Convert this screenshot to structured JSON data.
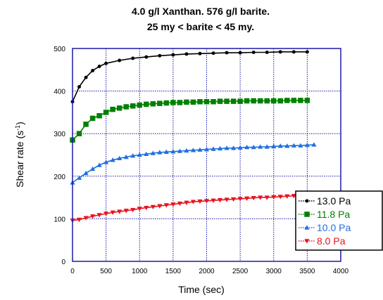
{
  "chart_data": {
    "type": "scatter",
    "title_lines": [
      "4.0 g/l Xanthan. 576 g/l barite.",
      "25 my < barite < 45 my."
    ],
    "xlabel": "Time (sec)",
    "ylabel_prefix": "Shear rate (s",
    "ylabel_sup": "-1",
    "ylabel_suffix": ")",
    "xlim": [
      0,
      4000
    ],
    "ylim": [
      0,
      500
    ],
    "x_ticks": [
      0,
      500,
      1000,
      1500,
      2000,
      2500,
      3000,
      3500,
      4000
    ],
    "y_ticks": [
      0,
      100,
      200,
      300,
      400,
      500
    ],
    "grid": true,
    "legend_position": "bottom-right",
    "series": [
      {
        "name": "13.0 Pa",
        "color": "#000000",
        "marker": "circle",
        "x": [
          0,
          100,
          200,
          300,
          400,
          500,
          700,
          900,
          1100,
          1300,
          1500,
          1700,
          1900,
          2100,
          2300,
          2500,
          2700,
          2900,
          3100,
          3300,
          3500
        ],
        "y": [
          375,
          410,
          432,
          448,
          458,
          465,
          472,
          477,
          480,
          483,
          485,
          487,
          488,
          489,
          490,
          490,
          491,
          491,
          492,
          492,
          492
        ]
      },
      {
        "name": "11.8 Pa",
        "color": "#008000",
        "marker": "square",
        "x": [
          0,
          100,
          200,
          300,
          400,
          500,
          600,
          700,
          800,
          900,
          1000,
          1100,
          1200,
          1300,
          1400,
          1500,
          1600,
          1700,
          1800,
          1900,
          2000,
          2100,
          2200,
          2300,
          2400,
          2500,
          2600,
          2700,
          2800,
          2900,
          3000,
          3100,
          3200,
          3300,
          3400,
          3500
        ],
        "y": [
          285,
          300,
          322,
          336,
          342,
          350,
          357,
          360,
          363,
          365,
          367,
          369,
          370,
          371,
          372,
          373,
          373,
          374,
          374,
          375,
          375,
          375,
          376,
          376,
          376,
          376,
          377,
          377,
          377,
          377,
          377,
          377,
          378,
          378,
          378,
          378
        ]
      },
      {
        "name": "10.0 Pa",
        "color": "#1f6fe0",
        "marker": "triangle-up",
        "x": [
          0,
          100,
          200,
          300,
          400,
          500,
          600,
          700,
          800,
          900,
          1000,
          1100,
          1200,
          1300,
          1400,
          1500,
          1600,
          1700,
          1800,
          1900,
          2000,
          2100,
          2200,
          2300,
          2400,
          2500,
          2600,
          2700,
          2800,
          2900,
          3000,
          3100,
          3200,
          3300,
          3400,
          3500,
          3600
        ],
        "y": [
          185,
          196,
          207,
          217,
          226,
          233,
          238,
          242,
          245,
          248,
          250,
          252,
          254,
          256,
          257,
          258,
          259,
          260,
          261,
          262,
          263,
          264,
          265,
          266,
          266,
          267,
          268,
          268,
          269,
          269,
          270,
          271,
          271,
          272,
          272,
          273,
          274
        ]
      },
      {
        "name": "8.0 Pa",
        "color": "#e8141e",
        "marker": "triangle-down",
        "x": [
          0,
          100,
          200,
          300,
          400,
          500,
          600,
          700,
          800,
          900,
          1000,
          1100,
          1200,
          1300,
          1400,
          1500,
          1600,
          1700,
          1800,
          1900,
          2000,
          2100,
          2200,
          2300,
          2400,
          2500,
          2600,
          2700,
          2800,
          2900,
          3000,
          3100,
          3200,
          3300,
          3400,
          3500,
          3600
        ],
        "y": [
          96,
          98,
          102,
          106,
          109,
          112,
          115,
          117,
          119,
          121,
          124,
          126,
          128,
          130,
          132,
          134,
          136,
          138,
          140,
          141,
          142,
          143,
          144,
          145,
          146,
          147,
          148,
          149,
          150,
          150,
          151,
          152,
          153,
          154,
          155,
          156,
          157
        ]
      }
    ]
  }
}
